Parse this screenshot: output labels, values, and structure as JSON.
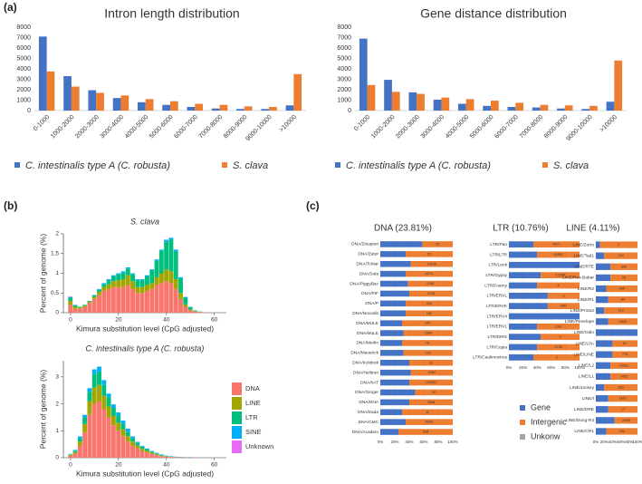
{
  "panel_labels": [
    "(a)",
    "(b)",
    "(c)"
  ],
  "chart_data": [
    {
      "type": "bar",
      "title": "Intron length distribution",
      "categories": [
        "0-1000",
        "1000-2000",
        "2000-3000",
        "3000-4000",
        "4000-5000",
        "5000-6000",
        "6000-7000",
        "7000-8000",
        "8000-9000",
        "9000-10000",
        ">10000"
      ],
      "series": [
        {
          "name": "C. intestinalis type A (C. robusta)",
          "color": "#4472c4",
          "values": [
            7100,
            3300,
            1950,
            1200,
            800,
            550,
            350,
            200,
            150,
            150,
            500
          ]
        },
        {
          "name": "S. clava",
          "color": "#ed7d31",
          "values": [
            3750,
            2300,
            1700,
            1450,
            1100,
            900,
            650,
            550,
            400,
            350,
            3500
          ]
        }
      ],
      "ylim": [
        0,
        8000
      ],
      "yticks": [
        0,
        1000,
        2000,
        3000,
        4000,
        5000,
        6000,
        7000,
        8000
      ],
      "legend": "bottom"
    },
    {
      "type": "bar",
      "title": "Gene distance distribution",
      "categories": [
        "0-1000",
        "1000-2000",
        "2000-3000",
        "3000-4000",
        "4000-5000",
        "5000-6000",
        "6000-7000",
        "7000-8000",
        "8000-9000",
        "9000-10000",
        ">10000"
      ],
      "series": [
        {
          "name": "C. intestinalis type A (C. robusta)",
          "color": "#4472c4",
          "values": [
            6900,
            2950,
            1750,
            1050,
            650,
            450,
            350,
            300,
            200,
            150,
            850
          ]
        },
        {
          "name": "S. clava",
          "color": "#ed7d31",
          "values": [
            2450,
            1800,
            1600,
            1250,
            1100,
            950,
            750,
            550,
            500,
            450,
            4800
          ]
        }
      ],
      "ylim": [
        0,
        8000
      ],
      "yticks": [
        0,
        1000,
        2000,
        3000,
        4000,
        5000,
        6000,
        7000,
        8000
      ],
      "legend": "bottom"
    },
    {
      "type": "histogram",
      "title": "S. clava",
      "x_label": "Kimura substitution level (CpG adjusted)",
      "y_label": "Percent of genome (%)",
      "bins": [
        -1,
        1,
        3,
        5,
        7,
        9,
        11,
        13,
        15,
        17,
        19,
        21,
        23,
        25,
        27,
        29,
        31,
        33,
        35,
        37,
        39,
        41,
        43,
        45,
        47,
        49,
        51,
        53,
        55,
        57
      ],
      "series": [
        {
          "color": "#f8766d",
          "values": [
            0.2,
            0.1,
            0.1,
            0.15,
            0.25,
            0.35,
            0.45,
            0.55,
            0.6,
            0.65,
            0.65,
            0.65,
            0.7,
            0.6,
            0.5,
            0.5,
            0.55,
            0.6,
            0.7,
            0.75,
            0.8,
            0.75,
            0.6,
            0.35,
            0.15,
            0.06,
            0.03,
            0.02,
            0.01
          ]
        },
        {
          "color": "#a3a500",
          "values": [
            0.1,
            0.05,
            0.03,
            0.03,
            0.03,
            0.05,
            0.08,
            0.1,
            0.12,
            0.15,
            0.17,
            0.2,
            0.25,
            0.2,
            0.15,
            0.15,
            0.15,
            0.15,
            0.2,
            0.25,
            0.3,
            0.3,
            0.25,
            0.15,
            0.06,
            0.02,
            0.01,
            0,
            0
          ]
        },
        {
          "color": "#00bf7d",
          "values": [
            0.08,
            0.04,
            0.02,
            0.02,
            0.02,
            0.04,
            0.05,
            0.07,
            0.1,
            0.12,
            0.15,
            0.17,
            0.17,
            0.17,
            0.17,
            0.18,
            0.22,
            0.32,
            0.42,
            0.57,
            0.7,
            0.8,
            0.7,
            0.37,
            0.17,
            0.06,
            0.02,
            0.01,
            0
          ]
        },
        {
          "color": "#00b0f6",
          "values": [
            0.02,
            0.01,
            0,
            0,
            0,
            0.01,
            0.02,
            0.03,
            0.03,
            0.03,
            0.03,
            0.03,
            0.03,
            0.03,
            0.03,
            0.02,
            0.03,
            0.03,
            0.03,
            0.03,
            0.05,
            0.05,
            0.05,
            0.03,
            0.02,
            0.01,
            0,
            0,
            0
          ]
        },
        {
          "color": "#e76bf3",
          "values": [
            0.01,
            0,
            0,
            0,
            0,
            0,
            0,
            0,
            0,
            0,
            0,
            0,
            0,
            0,
            0,
            0,
            0,
            0,
            0,
            0,
            0,
            0,
            0,
            0,
            0,
            0,
            0,
            0,
            0
          ]
        }
      ],
      "xlim": [
        -3,
        65
      ],
      "xticks": [
        0,
        20,
        40,
        60
      ],
      "ylim": [
        0,
        2
      ],
      "yticks": [
        0,
        0.5,
        1,
        1.5,
        2
      ],
      "legend": "none"
    },
    {
      "type": "histogram",
      "title": "C. intestinalis type A (C. robusta)",
      "x_label": "Kimura substitution level (CpG adjusted)",
      "y_label": "Percent of genome (%)",
      "bins": [
        -1,
        1,
        3,
        5,
        7,
        9,
        11,
        13,
        15,
        17,
        19,
        21,
        23,
        25,
        27,
        29,
        31,
        33,
        35,
        37,
        39,
        41,
        43,
        45,
        47,
        49,
        51,
        53,
        55,
        57
      ],
      "series": [
        {
          "name": "DNA",
          "color": "#f8766d",
          "values": [
            0.08,
            0.15,
            0.45,
            0.95,
            1.6,
            2.0,
            2.1,
            1.8,
            1.5,
            1.2,
            1.0,
            0.8,
            0.6,
            0.45,
            0.35,
            0.25,
            0.2,
            0.15,
            0.1,
            0.06,
            0.04,
            0.03,
            0.02,
            0.02,
            0.01,
            0.01,
            0.01,
            0,
            0
          ]
        },
        {
          "name": "LINE",
          "color": "#a3a500",
          "values": [
            0.03,
            0.06,
            0.15,
            0.3,
            0.5,
            0.6,
            0.6,
            0.5,
            0.4,
            0.35,
            0.3,
            0.25,
            0.2,
            0.15,
            0.1,
            0.08,
            0.06,
            0.04,
            0.03,
            0.02,
            0.01,
            0.01,
            0,
            0,
            0,
            0,
            0,
            0,
            0
          ]
        },
        {
          "name": "LTR",
          "color": "#00bf7d",
          "values": [
            0.02,
            0.05,
            0.12,
            0.25,
            0.35,
            0.5,
            0.5,
            0.4,
            0.35,
            0.3,
            0.25,
            0.2,
            0.15,
            0.12,
            0.1,
            0.08,
            0.06,
            0.04,
            0.03,
            0.02,
            0.01,
            0.01,
            0.01,
            0,
            0,
            0,
            0,
            0,
            0
          ]
        },
        {
          "name": "SINE",
          "color": "#00b0f6",
          "values": [
            0.01,
            0.03,
            0.07,
            0.09,
            0.13,
            0.18,
            0.18,
            0.18,
            0.13,
            0.13,
            0.13,
            0.13,
            0.13,
            0.07,
            0.04,
            0.03,
            0.02,
            0.02,
            0.02,
            0.02,
            0.02,
            0.01,
            0.01,
            0.01,
            0.01,
            0.01,
            0,
            0.01,
            0
          ]
        },
        {
          "name": "Unknown",
          "color": "#e76bf3",
          "values": [
            0,
            0,
            0,
            0,
            0,
            0,
            0,
            0,
            0,
            0,
            0,
            0,
            0,
            0,
            0,
            0,
            0,
            0,
            0,
            0,
            0,
            0,
            0,
            0,
            0,
            0,
            0,
            0,
            0
          ]
        }
      ],
      "xlim": [
        -3,
        65
      ],
      "xticks": [
        0,
        20,
        40,
        60
      ],
      "ylim": [
        0,
        3.6
      ],
      "yticks": [
        0,
        1,
        2,
        3
      ],
      "legend": "right"
    },
    {
      "type": "stacked_barh",
      "title": "DNA (23.81%)",
      "categories": [
        "DNA/Zisupton",
        "DNA/Zator",
        "DNA/TcMar",
        "DNA/Sola",
        "DNA/PiggyBac",
        "DNA/PIF",
        "DNA/P",
        "DNA/Novosib",
        "DNA/MULE",
        "DNA/MuLE",
        "DNA/Merlin",
        "DNA/Maverick",
        "DNA/Kolobok",
        "DNA/Helitron",
        "DNA/hAT",
        "DNA/Ginger",
        "DNA/DNA",
        "DNA/Dada",
        "DNA/CMC",
        "DNA/Academ"
      ],
      "series": [
        {
          "color": "#4472c4",
          "values": [
            58,
            35,
            42,
            35,
            38,
            40,
            35,
            35,
            30,
            32,
            30,
            32,
            40,
            42,
            40,
            48,
            40,
            30,
            35,
            25
          ]
        },
        {
          "color": "#ed7d31",
          "values": [
            42,
            65,
            58,
            65,
            62,
            60,
            65,
            65,
            70,
            68,
            70,
            68,
            60,
            58,
            60,
            52,
            60,
            70,
            65,
            75
          ],
          "labels": [
            "25",
            "29",
            "13206",
            "6274",
            "2240",
            "2703",
            "434",
            "152",
            "105",
            "1380",
            "76",
            "132",
            "22",
            "4282",
            "124352",
            "40",
            "7808",
            "11",
            "5393",
            "328"
          ]
        },
        {
          "color": "#a5a5a5",
          "values": [
            0,
            0,
            0,
            0,
            0,
            0,
            0,
            0,
            0,
            0,
            0,
            0,
            0,
            0,
            0,
            0,
            0,
            0,
            0,
            0
          ]
        }
      ],
      "xlim": [
        0,
        100
      ],
      "xticks": [
        {
          "value": 0,
          "label": "0%"
        },
        {
          "value": 20,
          "label": "20%"
        },
        {
          "value": 40,
          "label": "40%"
        },
        {
          "value": 60,
          "label": "60%"
        },
        {
          "value": 80,
          "label": "80%"
        },
        {
          "value": 100,
          "label": "100%"
        }
      ],
      "legend": "none"
    },
    {
      "type": "stacked_barh",
      "title": "LTR (10.76%)",
      "categories": [
        "LTR/Pao",
        "LTR/LTR",
        "LTR/Lenti",
        "LTR/Gypsy",
        "LTR/Foamy",
        "LTR/ERVL",
        "LTR/ERVK",
        "LTR/ERV4",
        "LTR/ERV1",
        "LTR/DIRS",
        "LTR/Copia",
        "LTR/Caulimovirus"
      ],
      "series": [
        {
          "name": "Gene",
          "color": "#4472c4",
          "values": [
            35,
            40,
            100,
            45,
            40,
            55,
            55,
            100,
            40,
            45,
            40,
            35
          ]
        },
        {
          "name": "Intergenic",
          "color": "#ed7d31",
          "values": [
            65,
            60,
            0,
            55,
            60,
            45,
            45,
            0,
            60,
            55,
            60,
            65
          ],
          "labels": [
            "6071",
            "41897",
            null,
            "21396",
            "8",
            "3",
            "960",
            null,
            "218",
            "2",
            "1728",
            "2"
          ]
        },
        {
          "name": "Unkonw",
          "color": "#a5a5a5",
          "values": [
            0,
            0,
            0,
            0,
            0,
            0,
            0,
            0,
            0,
            0,
            0,
            0
          ]
        }
      ],
      "xlim": [
        0,
        100
      ],
      "xticks": [
        {
          "value": 0,
          "label": "0%"
        },
        {
          "value": 20,
          "label": "20%"
        },
        {
          "value": 40,
          "label": "40%"
        },
        {
          "value": 60,
          "label": "60%"
        },
        {
          "value": 80,
          "label": "80%"
        },
        {
          "value": 100,
          "label": "100%"
        }
      ],
      "legend": "bottom"
    },
    {
      "type": "stacked_barh",
      "title": "LINE (4.11%)",
      "categories": [
        "LINE/Zorro",
        "LINE/Tad1",
        "LINE/RTE",
        "LINE/Rex-Babar",
        "LINE/R2",
        "LINE/R1",
        "LINE/Proto2",
        "LINE/Penelope",
        "LINE/Odin",
        "LINE/L0A",
        "LINE/LINE",
        "LINE/L2",
        "LINE/L1",
        "LINE/Jockey",
        "LINE/I",
        "LINE/DRE",
        "LINE/Dong-R4",
        "LINE/CR1"
      ],
      "series": [
        {
          "color": "#4472c4",
          "values": [
            10,
            20,
            35,
            35,
            25,
            30,
            20,
            30,
            100,
            40,
            40,
            35,
            35,
            20,
            30,
            30,
            45,
            25
          ]
        },
        {
          "color": "#ed7d31",
          "values": [
            90,
            80,
            65,
            65,
            75,
            70,
            80,
            70,
            0,
            60,
            60,
            65,
            65,
            80,
            70,
            70,
            55,
            75
          ],
          "labels": [
            "2",
            "124",
            "339",
            "25",
            "340",
            "84",
            "113",
            "1815",
            null,
            "87",
            "778",
            "10091",
            "7452",
            "263",
            "1602",
            "17",
            "2398",
            "700"
          ]
        },
        {
          "color": "#a5a5a5",
          "values": [
            0,
            0,
            0,
            0,
            0,
            0,
            0,
            0,
            0,
            0,
            0,
            0,
            0,
            0,
            0,
            0,
            0,
            0
          ]
        }
      ],
      "xlim": [
        0,
        100
      ],
      "xticks": [
        {
          "value": 0,
          "label": "0%"
        },
        {
          "value": 20,
          "label": "20%"
        },
        {
          "value": 40,
          "label": "40%"
        },
        {
          "value": 60,
          "label": "60%"
        },
        {
          "value": 80,
          "label": "80%"
        },
        {
          "value": 100,
          "label": "100%"
        }
      ],
      "legend": "none"
    }
  ]
}
